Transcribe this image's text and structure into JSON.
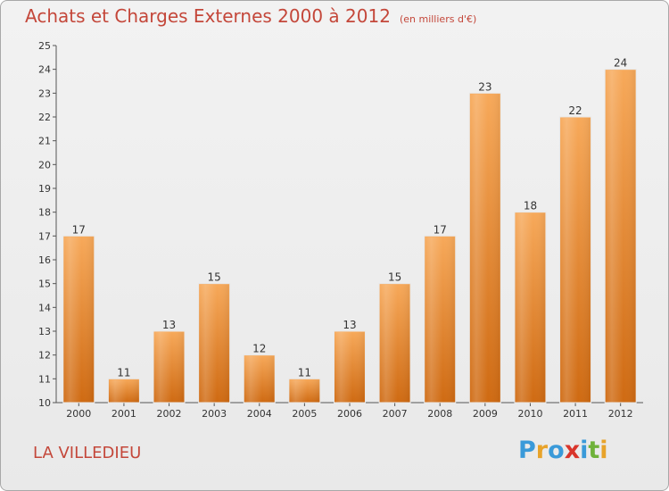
{
  "chart_data": {
    "type": "bar",
    "title": "Achats et Charges Externes 2000 à 2012",
    "subtitle": "(en milliers d'€)",
    "categories": [
      "2000",
      "2001",
      "2002",
      "2003",
      "2004",
      "2005",
      "2006",
      "2007",
      "2008",
      "2009",
      "2010",
      "2011",
      "2012"
    ],
    "values": [
      17,
      11,
      13,
      15,
      12,
      11,
      13,
      15,
      17,
      23,
      18,
      22,
      24
    ],
    "ylim": [
      10,
      25
    ],
    "yticks": [
      10,
      11,
      12,
      13,
      14,
      15,
      16,
      17,
      18,
      19,
      20,
      21,
      22,
      23,
      24,
      25
    ],
    "grid": false,
    "legend": "none",
    "bar_color": "#f0943a"
  },
  "footer": {
    "city": "LA VILLEDIEU",
    "logo_letters": [
      "P",
      "r",
      "o",
      "x",
      "i",
      "t",
      "i"
    ],
    "logo_colors": [
      "#3a9ad9",
      "#e8a32a",
      "#3a9ad9",
      "#d9352b",
      "#3a9ad9",
      "#6fb23a",
      "#e8a32a"
    ]
  }
}
